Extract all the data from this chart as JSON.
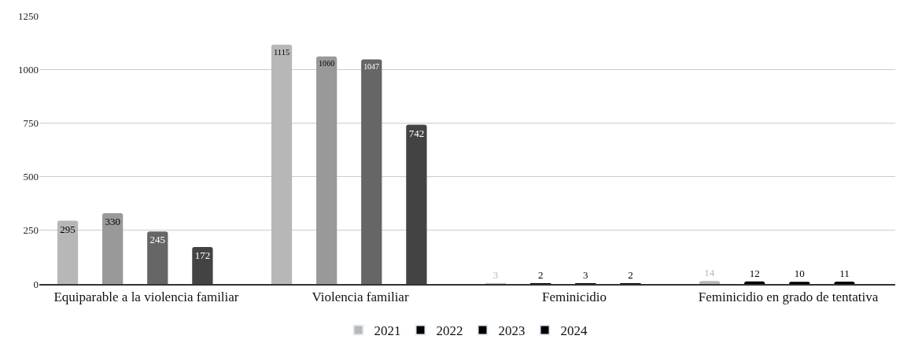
{
  "chart_data": {
    "type": "bar",
    "categories": [
      "Equiparable a la violencia familiar",
      "Violencia familiar",
      "Feminicidio",
      "Feminicidio en grado de tentativa"
    ],
    "series": [
      {
        "name": "2021",
        "color": "#b7b7b7",
        "colors": [
          "#b7b7b7",
          "#b7b7b7",
          "#b7b7b7",
          "#b7b7b7"
        ],
        "values": [
          295,
          1115,
          3,
          14
        ]
      },
      {
        "name": "2022",
        "color": "#000000",
        "colors": [
          "#999999",
          "#999999",
          "#000000",
          "#000000"
        ],
        "values": [
          330,
          1060,
          2,
          12
        ]
      },
      {
        "name": "2023",
        "color": "#000000",
        "colors": [
          "#666666",
          "#666666",
          "#000000",
          "#000000"
        ],
        "values": [
          245,
          1047,
          3,
          10
        ]
      },
      {
        "name": "2024",
        "color": "#000000",
        "colors": [
          "#434343",
          "#434343",
          "#000000",
          "#000000"
        ],
        "values": [
          172,
          742,
          2,
          11
        ]
      }
    ],
    "ylim": [
      0,
      1250
    ],
    "yticks": [
      0,
      250,
      500,
      750,
      1000,
      1250
    ],
    "grid": "y",
    "legend": "bottom",
    "data_labels": true
  }
}
